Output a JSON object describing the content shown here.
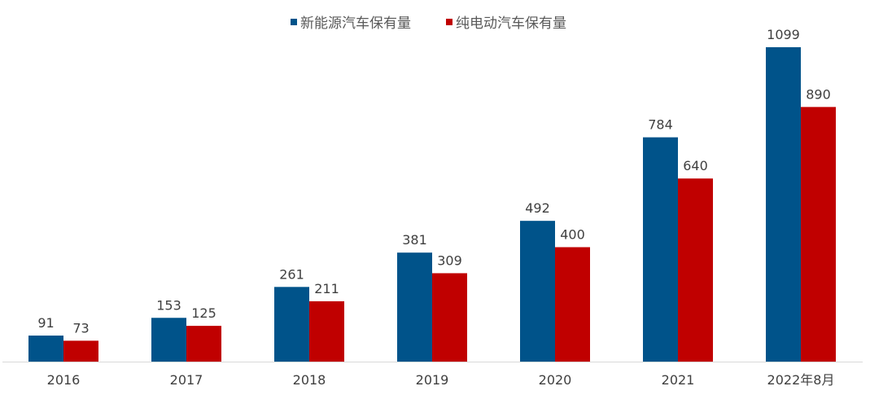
{
  "chart_data": {
    "type": "bar",
    "categories": [
      "2016",
      "2017",
      "2018",
      "2019",
      "2020",
      "2021",
      "2022年8月"
    ],
    "series": [
      {
        "name": "新能源汽车保有量",
        "color": "#00538A",
        "values": [
          91,
          153,
          261,
          381,
          492,
          784,
          1099
        ]
      },
      {
        "name": "纯电动汽车保有量",
        "color": "#C00000",
        "values": [
          73,
          125,
          211,
          309,
          400,
          640,
          890
        ]
      }
    ],
    "ylim": [
      0,
      1100
    ],
    "grid": false,
    "legend": "top-center",
    "data_labels": true
  }
}
